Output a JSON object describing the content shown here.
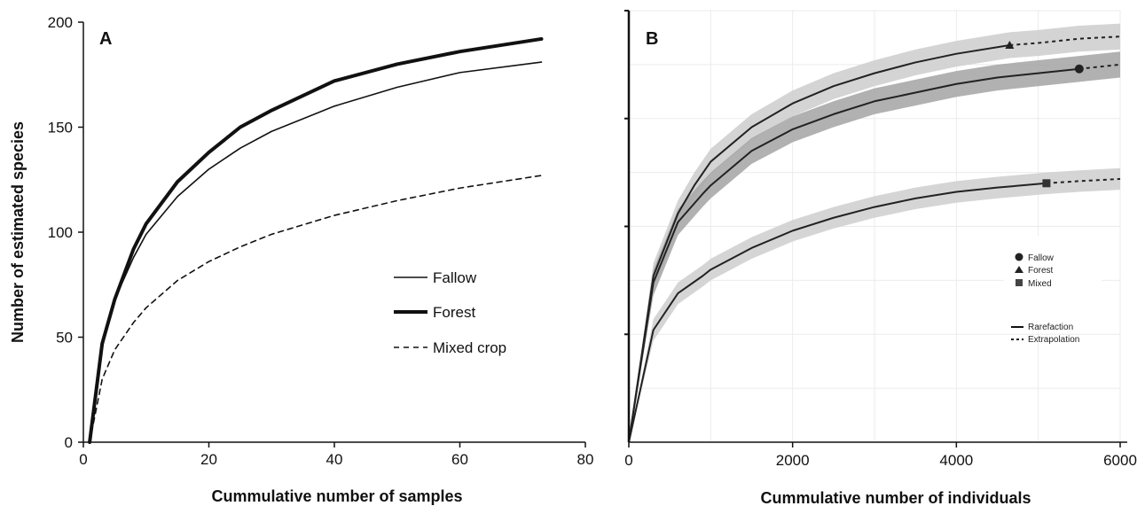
{
  "chart_data": [
    {
      "panel": "A",
      "type": "line",
      "xlabel": "Cummulative number of samples",
      "ylabel": "Number of estimated species",
      "xlim": [
        0,
        80
      ],
      "ylim": [
        0,
        200
      ],
      "xticks": [
        "0",
        "20",
        "40",
        "60",
        "80"
      ],
      "yticks": [
        "0",
        "50",
        "100",
        "150",
        "200"
      ],
      "grid": false,
      "legend_position": "center-right",
      "series": [
        {
          "name": "Fallow",
          "style": "thin-solid",
          "x": [
            1,
            3,
            5,
            8,
            10,
            15,
            20,
            25,
            30,
            40,
            50,
            60,
            73
          ],
          "y": [
            0,
            45,
            68,
            88,
            99,
            117,
            130,
            140,
            148,
            160,
            169,
            176,
            181
          ]
        },
        {
          "name": "Forest",
          "style": "thick-solid",
          "x": [
            1,
            3,
            5,
            8,
            10,
            15,
            20,
            25,
            30,
            40,
            50,
            60,
            73
          ],
          "y": [
            0,
            47,
            68,
            92,
            104,
            124,
            138,
            150,
            158,
            172,
            180,
            186,
            192
          ]
        },
        {
          "name": "Mixed crop",
          "style": "dashed",
          "x": [
            1,
            3,
            5,
            8,
            10,
            15,
            20,
            25,
            30,
            40,
            50,
            60,
            73
          ],
          "y": [
            0,
            30,
            44,
            57,
            64,
            77,
            86,
            93,
            99,
            108,
            115,
            121,
            127
          ]
        }
      ]
    },
    {
      "panel": "B",
      "type": "line",
      "xlabel": "Cummulative number of individuals",
      "xlim": [
        0,
        6000
      ],
      "ylim": [
        0,
        200
      ],
      "xticks": [
        "0",
        "2000",
        "4000",
        "6000"
      ],
      "grid": true,
      "legend_position": "right",
      "legend_groups": [
        "Fallow",
        "Forest",
        "Mixed"
      ],
      "legend_lines": [
        "Rarefaction",
        "Extrapolation"
      ],
      "series": [
        {
          "name": "Forest",
          "marker": "triangle",
          "observed_x": 4650,
          "x": [
            0,
            300,
            600,
            800,
            1000,
            1500,
            2000,
            2500,
            3000,
            3500,
            4000,
            4650,
            5000,
            5500,
            6000
          ],
          "y": [
            0,
            77,
            106,
            119,
            130,
            146,
            157,
            165,
            171,
            176,
            180,
            184,
            185,
            187,
            188
          ],
          "band": 6
        },
        {
          "name": "Fallow",
          "marker": "circle",
          "observed_x": 5500,
          "x": [
            0,
            300,
            600,
            900,
            1000,
            1500,
            2000,
            2500,
            3000,
            3500,
            4000,
            4500,
            5000,
            5500,
            6000
          ],
          "y": [
            0,
            74,
            102,
            115,
            119,
            135,
            145,
            152,
            158,
            162,
            166,
            169,
            171,
            173,
            175
          ],
          "band": 6
        },
        {
          "name": "Mixed",
          "marker": "square",
          "observed_x": 5100,
          "x": [
            0,
            300,
            600,
            900,
            1000,
            1500,
            2000,
            2500,
            3000,
            3500,
            4000,
            4500,
            5100,
            5500,
            6000
          ],
          "y": [
            0,
            52,
            69,
            77,
            80,
            90,
            98,
            104,
            109,
            113,
            116,
            118,
            120,
            121,
            122
          ],
          "band": 5
        }
      ]
    }
  ]
}
